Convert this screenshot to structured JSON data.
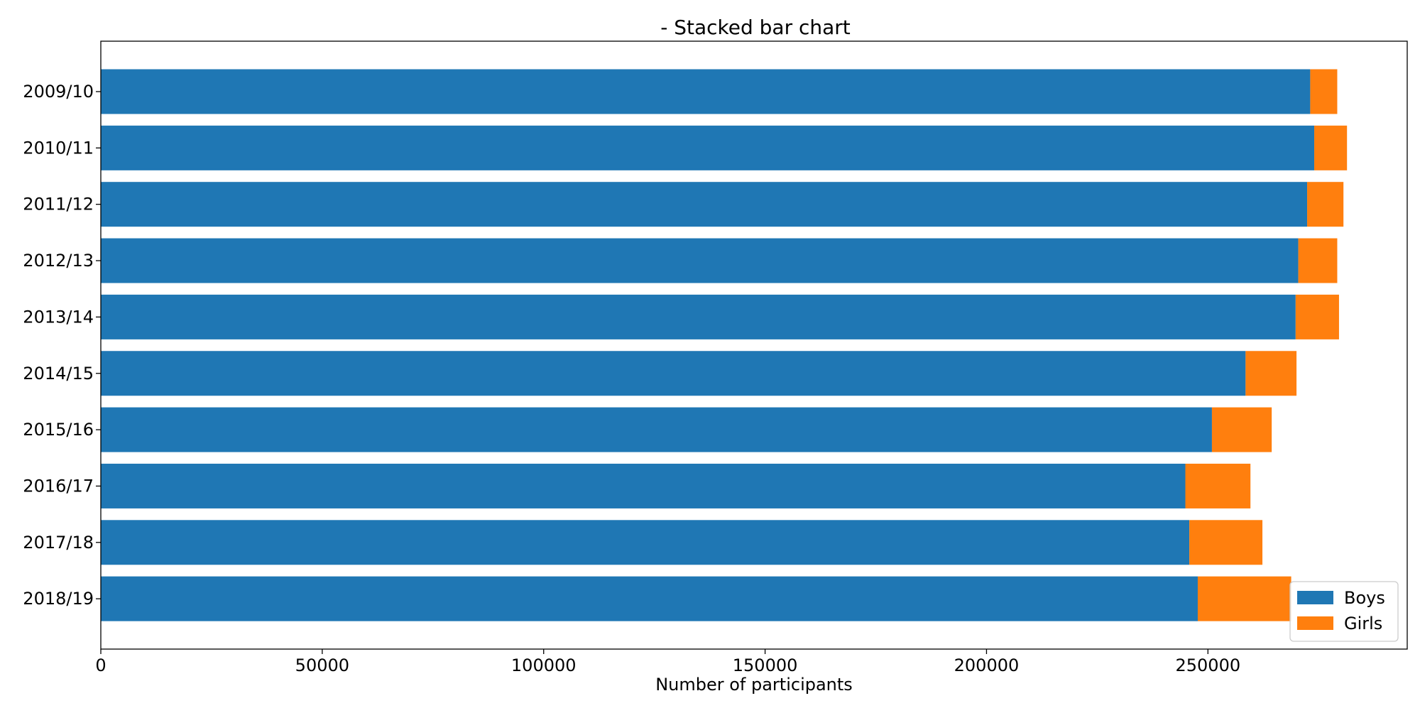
{
  "chart_data": {
    "type": "bar",
    "orientation": "horizontal",
    "stacked": true,
    "title": "- Stacked bar chart",
    "xlabel": "Number of participants",
    "ylabel": "",
    "categories": [
      "2009/10",
      "2010/11",
      "2011/12",
      "2012/13",
      "2013/14",
      "2014/15",
      "2015/16",
      "2016/17",
      "2017/18",
      "2018/19"
    ],
    "series": [
      {
        "name": "Boys",
        "color": "#1f77b4",
        "values": [
          273100,
          274000,
          272400,
          270400,
          269800,
          258500,
          250900,
          244900,
          245800,
          247700
        ]
      },
      {
        "name": "Girls",
        "color": "#ff7f0e",
        "values": [
          6100,
          7400,
          8200,
          8800,
          9800,
          11500,
          13500,
          14700,
          16500,
          21100
        ]
      }
    ],
    "xlim": [
      0,
      295000
    ],
    "xticks": [
      0,
      50000,
      100000,
      150000,
      200000,
      250000
    ],
    "xtick_labels": [
      "0",
      "50000",
      "100000",
      "150000",
      "200000",
      "250000"
    ],
    "grid": false,
    "legend_position": "lower-right",
    "y_inverted": true
  }
}
